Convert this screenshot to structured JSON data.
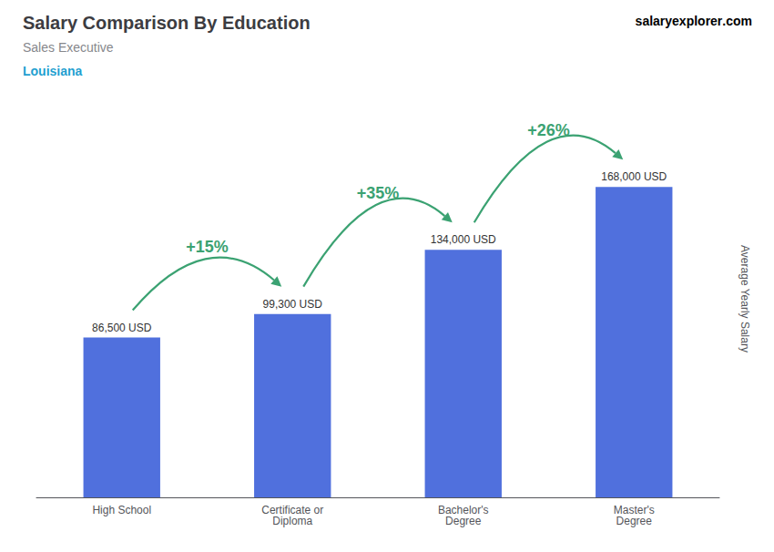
{
  "chart_data": {
    "type": "bar",
    "title": "Salary Comparison By Education",
    "subtitle": "Sales Executive",
    "location": "Louisiana",
    "brand": [
      "salary",
      "explorer",
      ".com"
    ],
    "ylabel": "Average Yearly Salary",
    "categories": [
      "High School",
      "Certificate or\nDiploma",
      "Bachelor's\nDegree",
      "Master's\nDegree"
    ],
    "values": [
      86500,
      99300,
      134000,
      168000
    ],
    "value_labels": [
      "86,500 USD",
      "99,300 USD",
      "134,000 USD",
      "168,000 USD"
    ],
    "data_labels": true,
    "annotations": [
      {
        "text": "+15%",
        "from": "High School",
        "to": "Certificate or\nDiploma"
      },
      {
        "text": "+35%",
        "from": "Certificate or\nDiploma",
        "to": "Bachelor's\nDegree"
      },
      {
        "text": "+26%",
        "from": "Bachelor's\nDegree",
        "to": "Master's\nDegree"
      }
    ],
    "ylim": [
      0,
      215000
    ],
    "grid": false,
    "tick_labels": "x"
  }
}
